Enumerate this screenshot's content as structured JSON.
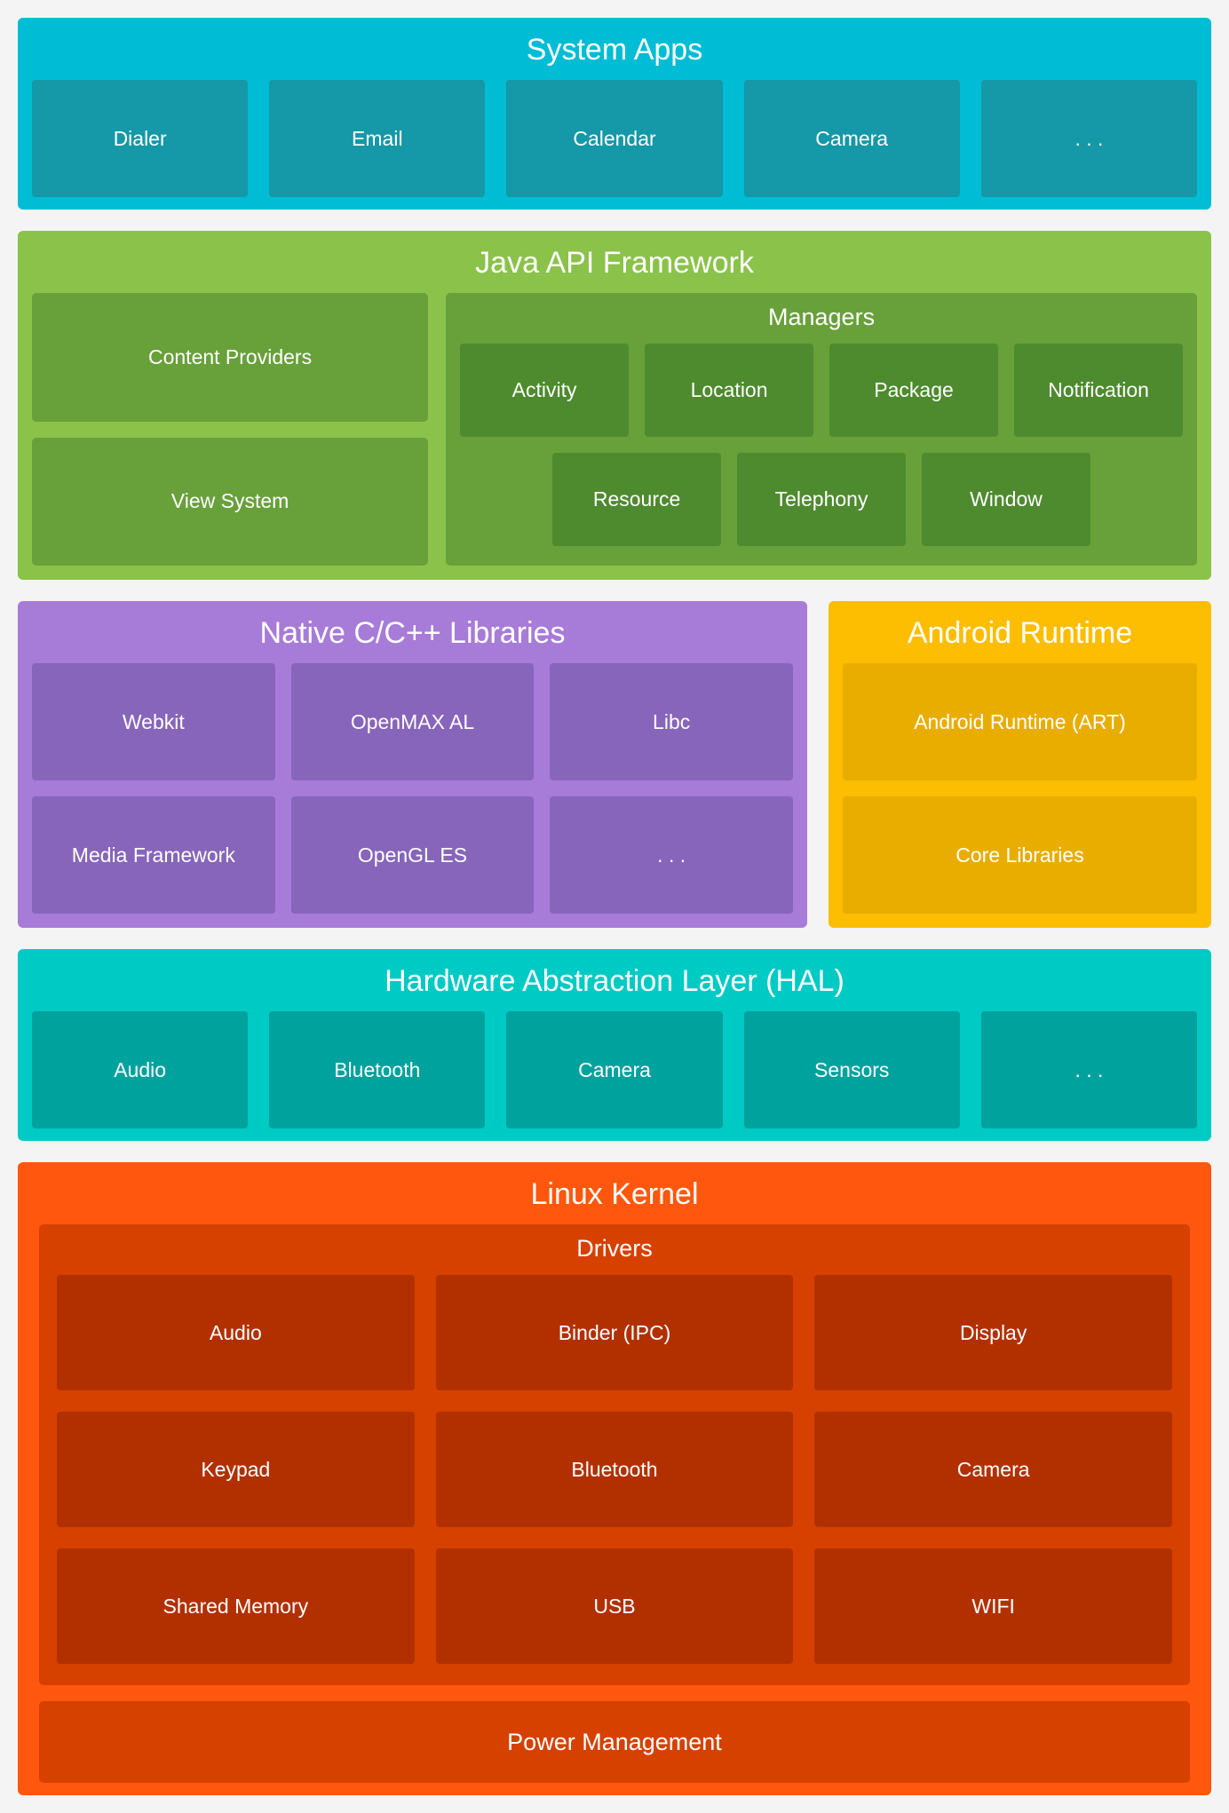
{
  "colors": {
    "background": "#F4F4F4",
    "system_apps": {
      "bg": "#00BCD4",
      "box": "#1598A7"
    },
    "java_api": {
      "bg": "#8AC24A",
      "box": "#68A03A",
      "chip": "#4E8A2E"
    },
    "native_libs": {
      "bg": "#A77BD8",
      "box": "#8765BB"
    },
    "android_runtime": {
      "bg": "#FDBD00",
      "box": "#E9AD00"
    },
    "hal": {
      "bg": "#00CAC4",
      "box": "#00A29D"
    },
    "kernel": {
      "bg": "#FF570D",
      "box": "#D64100",
      "chip": "#B23000"
    }
  },
  "sections": {
    "system_apps": {
      "title": "System Apps",
      "items": [
        "Dialer",
        "Email",
        "Calendar",
        "Camera",
        ". . ."
      ]
    },
    "java_api": {
      "title": "Java API Framework",
      "left_items": [
        "Content Providers",
        "View System"
      ],
      "managers": {
        "title": "Managers",
        "row1": [
          "Activity",
          "Location",
          "Package",
          "Notification"
        ],
        "row2": [
          "Resource",
          "Telephony",
          "Window"
        ]
      }
    },
    "native_libs": {
      "title": "Native C/C++ Libraries",
      "row1": [
        "Webkit",
        "OpenMAX AL",
        "Libc"
      ],
      "row2": [
        "Media Framework",
        "OpenGL ES",
        ". . ."
      ]
    },
    "android_runtime": {
      "title": "Android Runtime",
      "items": [
        "Android Runtime (ART)",
        "Core Libraries"
      ]
    },
    "hal": {
      "title": "Hardware Abstraction Layer (HAL)",
      "items": [
        "Audio",
        "Bluetooth",
        "Camera",
        "Sensors",
        ". . ."
      ]
    },
    "kernel": {
      "title": "Linux Kernel",
      "drivers": {
        "title": "Drivers",
        "rows": [
          [
            "Audio",
            "Binder (IPC)",
            "Display"
          ],
          [
            "Keypad",
            "Bluetooth",
            "Camera"
          ],
          [
            "Shared Memory",
            "USB",
            "WIFI"
          ]
        ]
      },
      "power": "Power Management"
    }
  }
}
